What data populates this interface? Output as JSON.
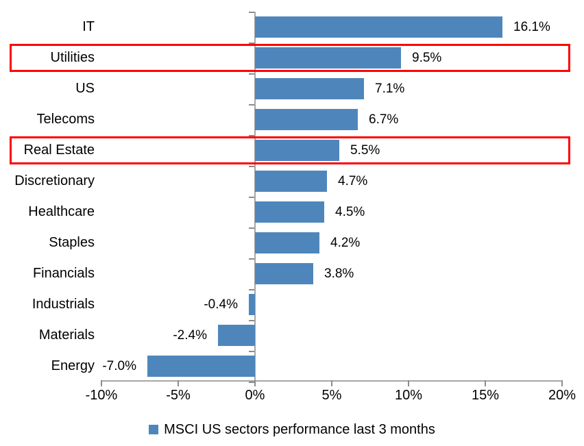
{
  "chart_data": {
    "type": "bar",
    "orientation": "horizontal",
    "title": "",
    "categories": [
      "IT",
      "Utilities",
      "US",
      "Telecoms",
      "Real Estate",
      "Discretionary",
      "Healthcare",
      "Staples",
      "Financials",
      "Industrials",
      "Materials",
      "Energy"
    ],
    "series": [
      {
        "name": "MSCI US sectors performance last 3 months",
        "values": [
          16.1,
          9.5,
          7.1,
          6.7,
          5.5,
          4.7,
          4.5,
          4.2,
          3.8,
          -0.4,
          -2.4,
          -7.0
        ]
      }
    ],
    "value_labels": [
      "16.1%",
      "9.5%",
      "7.1%",
      "6.7%",
      "5.5%",
      "4.7%",
      "4.5%",
      "4.2%",
      "3.8%",
      "-0.4%",
      "-2.4%",
      "-7.0%"
    ],
    "highlighted_categories": [
      "Utilities",
      "Real Estate"
    ],
    "x_ticks": [
      {
        "label": "-10%",
        "value": -10
      },
      {
        "label": "-5%",
        "value": -5
      },
      {
        "label": "0%",
        "value": 0
      },
      {
        "label": "5%",
        "value": 5
      },
      {
        "label": "10%",
        "value": 10
      },
      {
        "label": "15%",
        "value": 15
      },
      {
        "label": "20%",
        "value": 20
      }
    ],
    "xlim": [
      -10,
      20
    ],
    "grid": false,
    "legend_position": "bottom-center",
    "legend_label": "MSCI US sectors performance last 3 months",
    "colors": {
      "bar": "#4E86BC",
      "highlight_box": "#FF0000",
      "axis_line": "#A6A6A6",
      "tick_mark": "#8C8C8C",
      "text": "#000000",
      "background": "#FFFFFF"
    }
  }
}
